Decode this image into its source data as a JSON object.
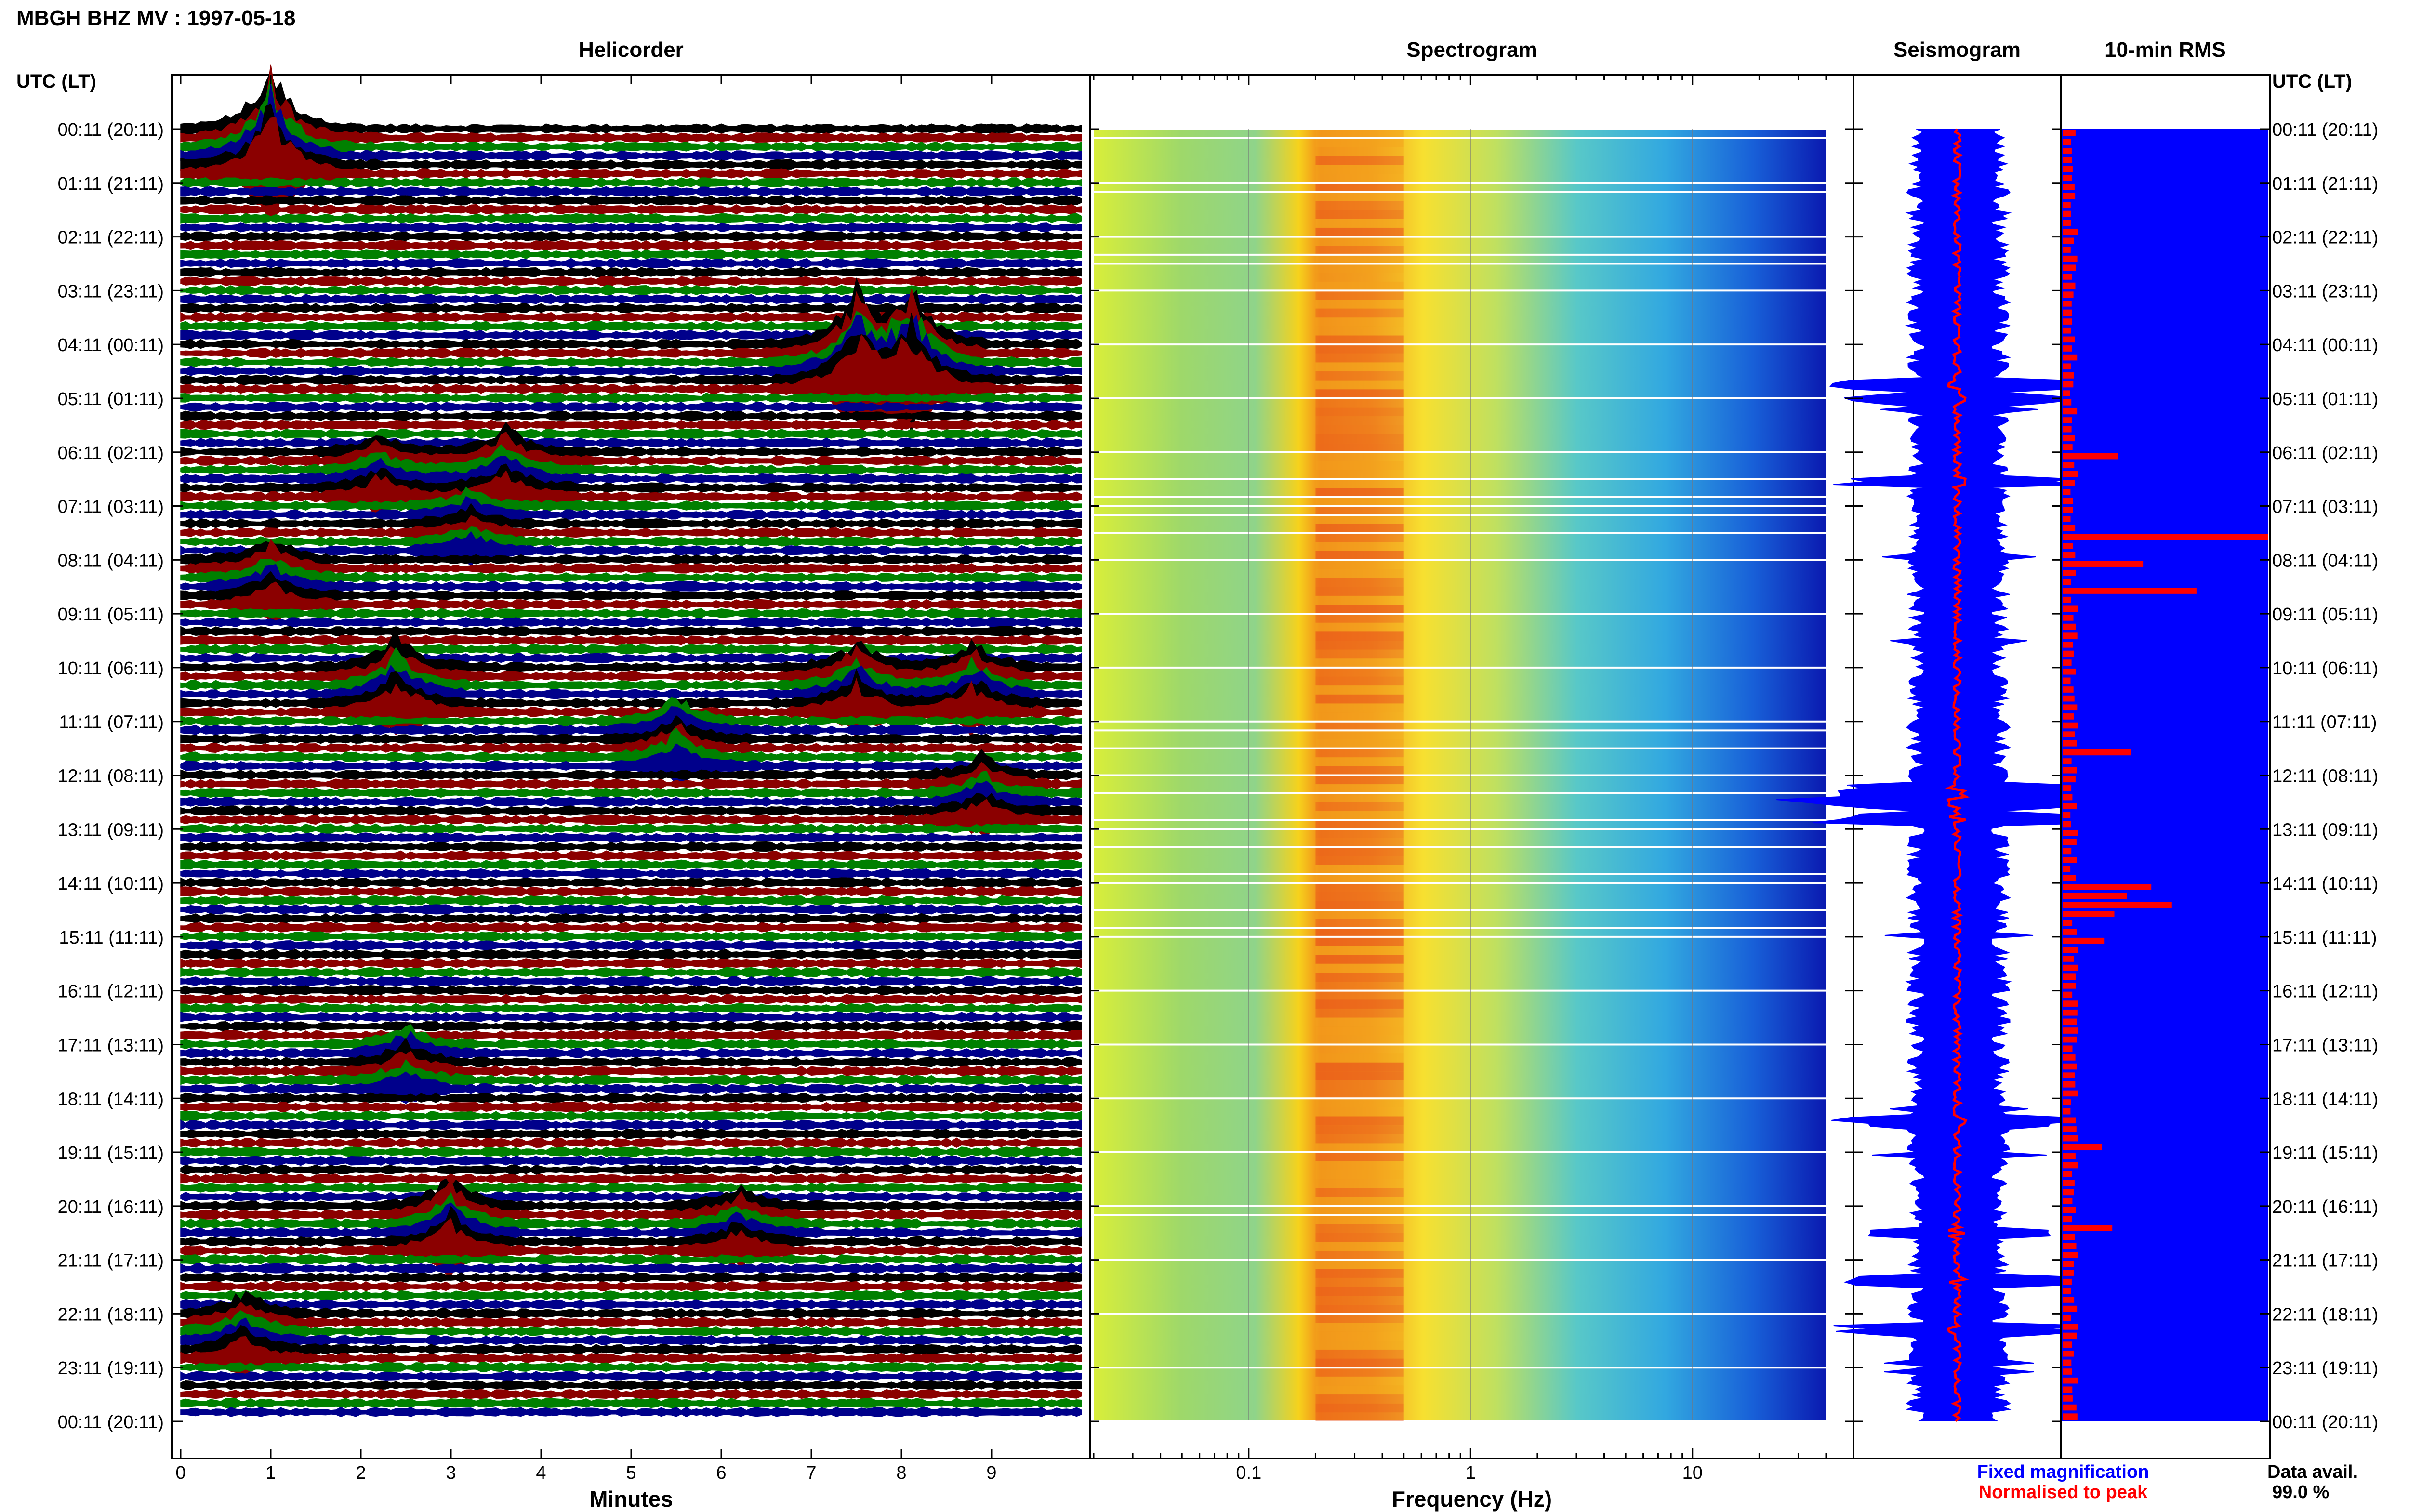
{
  "title": "MBGH BHZ MV : 1997-05-18",
  "panels": {
    "helicorder": "Helicorder",
    "spectrogram": "Spectrogram",
    "seismogram": "Seismogram",
    "rms": "10-min RMS"
  },
  "left_axis_header": "UTC (LT)",
  "right_axis_header": "UTC (LT)",
  "time_labels": [
    "00:11 (20:11)",
    "01:11 (21:11)",
    "02:11 (22:11)",
    "03:11 (23:11)",
    "04:11 (00:11)",
    "05:11 (01:11)",
    "06:11 (02:11)",
    "07:11 (03:11)",
    "08:11 (04:11)",
    "09:11 (05:11)",
    "10:11 (06:11)",
    "11:11 (07:11)",
    "12:11 (08:11)",
    "13:11 (09:11)",
    "14:11 (10:11)",
    "15:11 (11:11)",
    "16:11 (12:11)",
    "17:11 (13:11)",
    "18:11 (14:11)",
    "19:11 (15:11)",
    "20:11 (16:11)",
    "21:11 (17:11)",
    "22:11 (18:11)",
    "23:11 (19:11)",
    "00:11 (20:11)"
  ],
  "helicorder_xaxis": {
    "label": "Minutes",
    "ticks": [
      "0",
      "1",
      "2",
      "3",
      "4",
      "5",
      "6",
      "7",
      "8",
      "9"
    ]
  },
  "spectrogram_xaxis": {
    "label": "Frequency (Hz)",
    "ticks": [
      "0.1",
      "1",
      "10"
    ],
    "scale": "log"
  },
  "legend": {
    "fixed": "Fixed magnification",
    "normalised": "Normalised to peak"
  },
  "availability": {
    "label": "Data avail.",
    "value": "99.0 %"
  },
  "colors": {
    "trace_cycle": [
      "#000000",
      "#8b0000",
      "#008000",
      "#00008b"
    ],
    "fixed_magnification": "#0000ff",
    "normalised_to_peak": "#ff0000",
    "rms_background": "#0000ff",
    "rms_bars": "#ff0000"
  },
  "chart_data": [
    {
      "type": "line",
      "name": "helicorder",
      "xlabel": "Minutes",
      "xlim": [
        0,
        10
      ],
      "ylabel": "UTC (LT)",
      "rows_per_hour": 6,
      "events": [
        {
          "hour": 0,
          "minute": 1.0,
          "amp": 1.0
        },
        {
          "hour": 4,
          "minute": 7.5,
          "amp": 0.8
        },
        {
          "hour": 4,
          "minute": 8.1,
          "amp": 0.9
        },
        {
          "hour": 6,
          "minute": 3.6,
          "amp": 0.4
        },
        {
          "hour": 6,
          "minute": 2.2,
          "amp": 0.3
        },
        {
          "hour": 7,
          "minute": 3.2,
          "amp": 0.25
        },
        {
          "hour": 8,
          "minute": 1.0,
          "amp": 0.35
        },
        {
          "hour": 10,
          "minute": 2.4,
          "amp": 0.5
        },
        {
          "hour": 10,
          "minute": 7.5,
          "amp": 0.45
        },
        {
          "hour": 10,
          "minute": 8.8,
          "amp": 0.4
        },
        {
          "hour": 11,
          "minute": 5.5,
          "amp": 0.35
        },
        {
          "hour": 12,
          "minute": 8.9,
          "amp": 0.3
        },
        {
          "hour": 17,
          "minute": 2.5,
          "amp": 0.3
        },
        {
          "hour": 20,
          "minute": 3.0,
          "amp": 0.45
        },
        {
          "hour": 20,
          "minute": 6.2,
          "amp": 0.3
        },
        {
          "hour": 22,
          "minute": 0.7,
          "amp": 0.35
        }
      ]
    },
    {
      "type": "heatmap",
      "name": "spectrogram",
      "xlabel": "Frequency (Hz)",
      "xscale": "log",
      "xlim": [
        0.02,
        40
      ],
      "peak_band_hz": [
        0.2,
        0.5
      ]
    },
    {
      "type": "line",
      "name": "seismogram",
      "series": [
        {
          "name": "Fixed magnification",
          "color": "#0000ff"
        },
        {
          "name": "Normalised to peak",
          "color": "#ff0000"
        }
      ]
    },
    {
      "type": "bar",
      "name": "10-min RMS",
      "rows": 144,
      "peaks": [
        {
          "row": 45,
          "value": 1.0
        },
        {
          "row": 48,
          "value": 0.39
        },
        {
          "row": 51,
          "value": 0.65
        },
        {
          "row": 69,
          "value": 0.33
        },
        {
          "row": 84,
          "value": 0.43
        },
        {
          "row": 85,
          "value": 0.31
        },
        {
          "row": 86,
          "value": 0.53
        },
        {
          "row": 87,
          "value": 0.25
        },
        {
          "row": 90,
          "value": 0.2
        },
        {
          "row": 36,
          "value": 0.27
        },
        {
          "row": 122,
          "value": 0.24
        },
        {
          "row": 113,
          "value": 0.19
        }
      ]
    }
  ]
}
